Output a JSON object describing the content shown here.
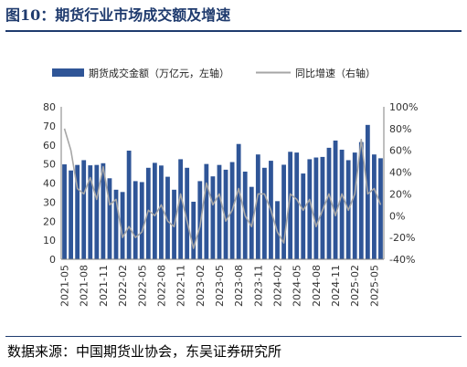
{
  "figure": {
    "title": "图10：期货行业市场成交额及增速",
    "source": "数据来源：中国期货业协会，东吴证券研究所"
  },
  "chart_data": {
    "type": "bar",
    "title": "",
    "xlabel": "",
    "ylabel": "",
    "legend_position": "top",
    "grid": false,
    "ylim": [
      0,
      80
    ],
    "y_ticks": [
      "0",
      "10",
      "20",
      "30",
      "40",
      "50",
      "60",
      "70",
      "80"
    ],
    "y2lim": [
      -40,
      100
    ],
    "y2_ticks": [
      "-40%",
      "-20%",
      "0%",
      "20%",
      "40%",
      "60%",
      "80%",
      "100%"
    ],
    "x_tick_labels": [
      "2021-05",
      "2021-08",
      "2021-11",
      "2022-02",
      "2022-05",
      "2022-08",
      "2022-11",
      "2023-02",
      "2023-05",
      "2023-08",
      "2023-11",
      "2024-02",
      "2024-05",
      "2024-08",
      "2024-11",
      "2025-02",
      "2025-05"
    ],
    "categories": [
      "2021-05",
      "2021-06",
      "2021-07",
      "2021-08",
      "2021-09",
      "2021-10",
      "2021-11",
      "2021-12",
      "2022-01",
      "2022-02",
      "2022-03",
      "2022-04",
      "2022-05",
      "2022-06",
      "2022-07",
      "2022-08",
      "2022-09",
      "2022-10",
      "2022-11",
      "2022-12",
      "2023-01",
      "2023-02",
      "2023-03",
      "2023-04",
      "2023-05",
      "2023-06",
      "2023-07",
      "2023-08",
      "2023-09",
      "2023-10",
      "2023-11",
      "2023-12",
      "2024-01",
      "2024-02",
      "2024-03",
      "2024-04",
      "2024-05",
      "2024-06",
      "2024-07",
      "2024-08",
      "2024-09",
      "2024-10",
      "2024-11",
      "2024-12",
      "2025-01",
      "2025-02",
      "2025-03",
      "2025-04",
      "2025-05",
      "2025-06"
    ],
    "series": [
      {
        "name": "期货成交金额（万亿元，左轴）",
        "type": "bar",
        "axis": "left",
        "color": "#2f5597",
        "values": [
          49.8,
          46.6,
          49.5,
          52.0,
          49.3,
          49.5,
          50.4,
          42.5,
          36.5,
          35.3,
          57.0,
          41.0,
          40.5,
          48.0,
          50.6,
          49.2,
          43.3,
          36.5,
          52.5,
          48.0,
          30.2,
          41.0,
          50.0,
          43.5,
          49.5,
          47.0,
          51.0,
          60.5,
          46.0,
          38.0,
          55.0,
          48.0,
          51.7,
          30.5,
          49.6,
          56.4,
          56.0,
          45.0,
          52.5,
          53.4,
          53.7,
          58.5,
          62.3,
          57.5,
          52.0,
          56.0,
          61.5,
          70.5,
          55.0,
          53.0
        ]
      },
      {
        "name": "同比增速（右轴）",
        "type": "line",
        "axis": "right",
        "color": "#a6a6a6",
        "values": [
          80,
          60,
          25,
          20,
          35,
          15,
          45,
          10,
          15,
          -20,
          -10,
          -20,
          -15,
          5,
          0,
          10,
          -5,
          -10,
          20,
          -5,
          -30,
          -10,
          30,
          10,
          20,
          -5,
          5,
          25,
          0,
          -10,
          20,
          20,
          5,
          -15,
          -25,
          20,
          15,
          5,
          15,
          -10,
          5,
          20,
          0,
          20,
          5,
          20,
          70,
          20,
          25,
          10
        ]
      }
    ]
  }
}
